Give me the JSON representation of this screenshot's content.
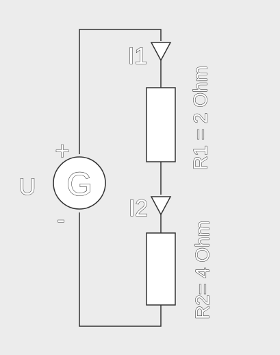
{
  "circuit": {
    "source": {
      "label": "G",
      "voltage_label": "U",
      "plus_sign": "+",
      "minus_sign": "-"
    },
    "resistors": [
      {
        "id": "R1",
        "value_label": "R1 = 2 Ohm",
        "current_label": "I1"
      },
      {
        "id": "R2",
        "value_label": "R2= 4 Ohm",
        "current_label": "I2"
      }
    ]
  },
  "colors": {
    "background": "#ececec",
    "wire": "#333333",
    "component_fill": "#ffffff"
  }
}
